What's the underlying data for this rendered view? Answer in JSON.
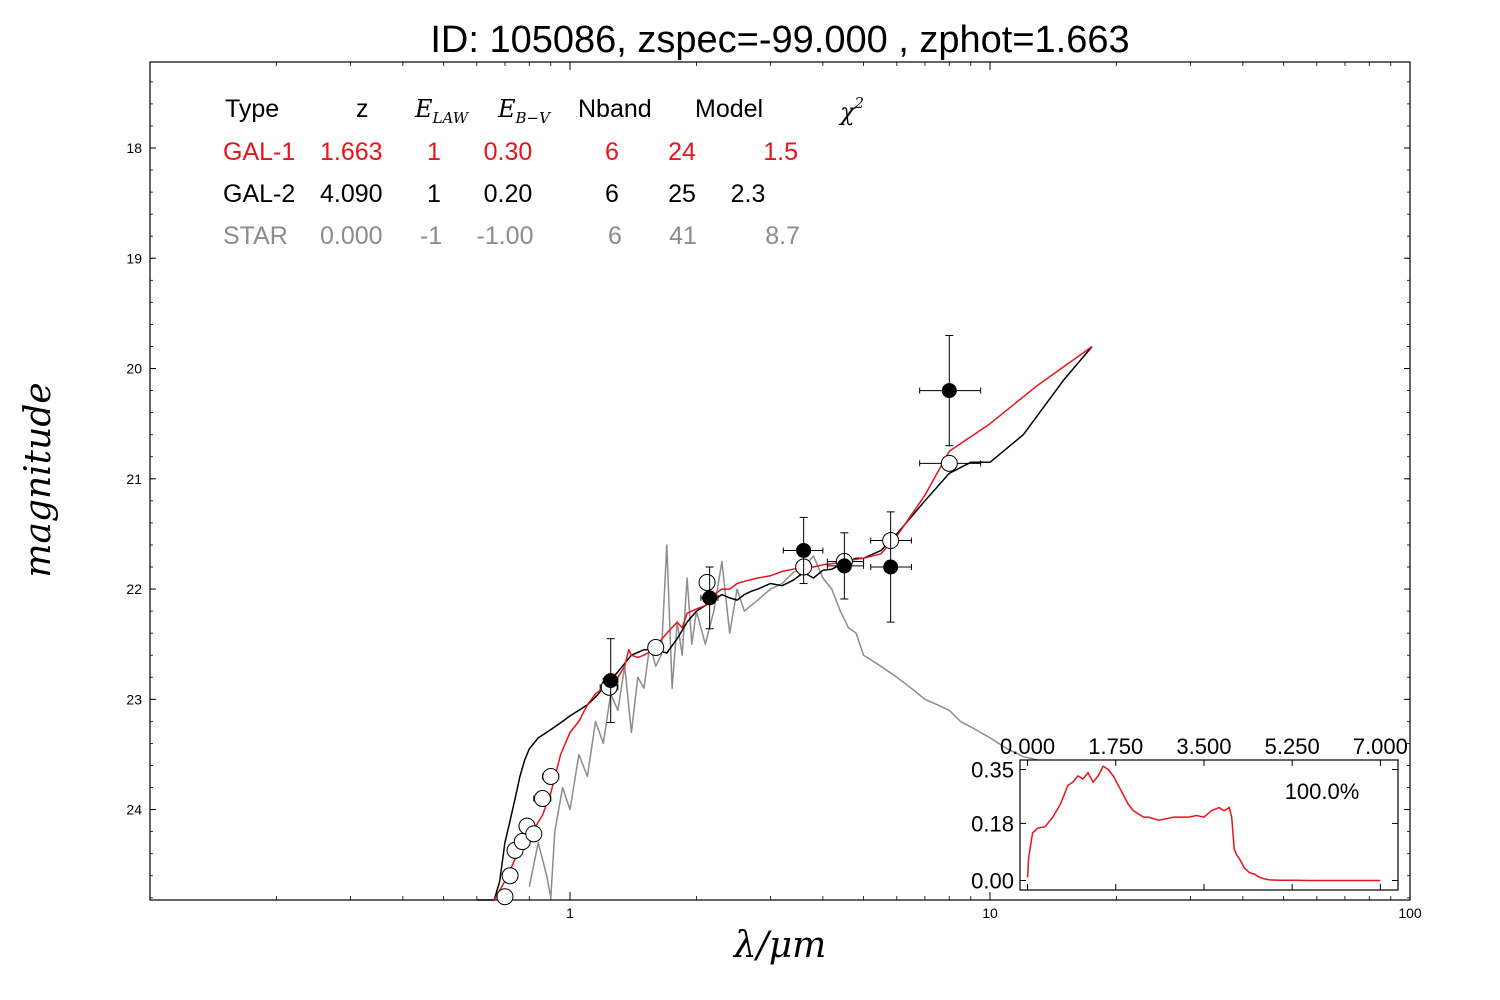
{
  "colors": {
    "gal1": "#e8141b",
    "gal2": "#000000",
    "star": "#8c8c8c"
  },
  "chart_data": {
    "type": "scatter",
    "title": "ID:  105086, zspec=-99.000 , zphot=1.663",
    "xlabel": "λ/μm",
    "ylabel": "magnitude",
    "xscale": "log",
    "xlim": [
      0.1,
      100
    ],
    "ylim": [
      24.82,
      17.22
    ],
    "x_tick_labels": [
      "1",
      "10",
      "100"
    ],
    "y_tick_labels": [
      "18",
      "19",
      "20",
      "21",
      "22",
      "23",
      "24"
    ],
    "grid": false,
    "table": {
      "headers": {
        "type": "Type",
        "z": "z",
        "elaw": "E",
        "elaw_sub": "LAW",
        "ebv": "E",
        "ebv_sub": "B−V",
        "nband": "Nband",
        "model": "Model",
        "chi2": "χ",
        "chi2_sup": "2"
      },
      "rows": [
        {
          "type": "GAL-1",
          "z": "1.663",
          "elaw": "1",
          "ebv": "0.30",
          "nband": "6",
          "model": "24",
          "chi2": "1.5"
        },
        {
          "type": "GAL-2",
          "z": "4.090",
          "elaw": "1",
          "ebv": "0.20",
          "nband": "6",
          "model": "25",
          "chi2": "2.3"
        },
        {
          "type": "STAR",
          "z": "0.000",
          "elaw": "-1",
          "ebv": "-1.00",
          "nband": "6",
          "model": "41",
          "chi2": "8.7"
        }
      ]
    },
    "observed_points": [
      {
        "x": 1.25,
        "y": 22.83,
        "xerr": [
          0.05,
          0.05
        ],
        "yerr": 0.38
      },
      {
        "x": 2.15,
        "y": 22.08,
        "xerr": [
          0.1,
          0.1
        ],
        "yerr": 0.28
      },
      {
        "x": 3.6,
        "y": 21.65,
        "xerr": [
          0.38,
          0.4
        ],
        "yerr": 0.3
      },
      {
        "x": 4.5,
        "y": 21.79,
        "xerr": [
          0.4,
          0.5
        ],
        "yerr": 0.3
      },
      {
        "x": 5.8,
        "y": 21.8,
        "xerr": [
          0.6,
          0.7
        ],
        "yerr": 0.5
      },
      {
        "x": 8.0,
        "y": 20.2,
        "xerr": [
          1.2,
          1.5
        ],
        "yerr": 0.5
      }
    ],
    "model_points": [
      {
        "x": 0.7,
        "y": 24.79,
        "xerr": [
          0,
          0
        ]
      },
      {
        "x": 0.72,
        "y": 24.6,
        "xerr": [
          0,
          0
        ]
      },
      {
        "x": 0.74,
        "y": 24.37,
        "xerr": [
          0,
          0
        ]
      },
      {
        "x": 0.77,
        "y": 24.29,
        "xerr": [
          0,
          0
        ]
      },
      {
        "x": 0.79,
        "y": 24.15,
        "xerr": [
          0,
          0
        ]
      },
      {
        "x": 0.82,
        "y": 24.22,
        "xerr": [
          0,
          0
        ]
      },
      {
        "x": 0.86,
        "y": 23.9,
        "xerr": [
          0.04,
          0.04
        ]
      },
      {
        "x": 0.9,
        "y": 23.7,
        "xerr": [
          0.04,
          0.04
        ]
      },
      {
        "x": 1.24,
        "y": 22.89,
        "xerr": [
          0.06,
          0.06
        ]
      },
      {
        "x": 1.6,
        "y": 22.53,
        "xerr": [
          0,
          0
        ]
      },
      {
        "x": 2.12,
        "y": 21.94,
        "xerr": [
          0,
          0
        ]
      },
      {
        "x": 3.6,
        "y": 21.8,
        "xerr": [
          0,
          0
        ]
      },
      {
        "x": 4.5,
        "y": 21.75,
        "xerr": [
          0.4,
          0.5
        ]
      },
      {
        "x": 5.8,
        "y": 21.56,
        "xerr": [
          0.6,
          0.7
        ]
      },
      {
        "x": 8.0,
        "y": 20.86,
        "xerr": [
          1.2,
          1.5
        ]
      }
    ],
    "series": [
      {
        "legend": "GAL-1",
        "color": "#e8141b",
        "x": [
          0.66,
          0.7,
          0.74,
          0.78,
          0.82,
          0.86,
          0.9,
          0.95,
          1.0,
          1.05,
          1.1,
          1.15,
          1.2,
          1.25,
          1.3,
          1.35,
          1.38,
          1.4,
          1.45,
          1.5,
          1.55,
          1.6,
          1.7,
          1.8,
          1.85,
          1.9,
          2.0,
          2.1,
          2.2,
          2.3,
          2.4,
          2.5,
          2.6,
          2.8,
          3.0,
          3.2,
          3.4,
          3.6,
          3.8,
          4.0,
          4.2,
          4.5,
          4.8,
          5.0,
          5.5,
          6.0,
          7.0,
          8.0,
          10.0,
          13.0,
          17.5
        ],
        "y": [
          24.85,
          24.65,
          24.45,
          24.3,
          24.18,
          24.05,
          23.85,
          23.5,
          23.3,
          23.2,
          23.05,
          22.95,
          22.9,
          22.85,
          22.8,
          22.7,
          22.55,
          22.6,
          22.62,
          22.6,
          22.57,
          22.52,
          22.4,
          22.3,
          22.35,
          22.22,
          22.18,
          22.15,
          22.05,
          22.0,
          22.0,
          21.95,
          21.93,
          21.9,
          21.88,
          21.84,
          21.82,
          21.8,
          21.8,
          21.78,
          21.77,
          21.75,
          21.73,
          21.72,
          21.68,
          21.52,
          21.15,
          20.75,
          20.5,
          20.15,
          19.8
        ]
      },
      {
        "legend": "GAL-2",
        "color": "#000000",
        "x": [
          0.6,
          0.66,
          0.68,
          0.7,
          0.72,
          0.74,
          0.76,
          0.78,
          0.8,
          0.84,
          0.88,
          0.92,
          0.96,
          1.0,
          1.05,
          1.1,
          1.15,
          1.2,
          1.3,
          1.4,
          1.5,
          1.6,
          1.7,
          1.8,
          1.9,
          2.0,
          2.1,
          2.2,
          2.3,
          2.4,
          2.5,
          2.6,
          2.7,
          2.8,
          3.0,
          3.2,
          3.4,
          3.6,
          3.8,
          4.0,
          4.2,
          4.4,
          4.6,
          4.8,
          5.0,
          5.5,
          6.0,
          7.0,
          8.0,
          9.0,
          10.0,
          12.0,
          15.0,
          17.5
        ],
        "y": [
          24.82,
          24.82,
          24.65,
          24.3,
          24.1,
          23.9,
          23.7,
          23.55,
          23.45,
          23.35,
          23.3,
          23.25,
          23.2,
          23.15,
          23.1,
          23.05,
          22.98,
          22.9,
          22.75,
          22.6,
          22.55,
          22.55,
          22.58,
          22.45,
          22.3,
          22.2,
          22.15,
          22.1,
          22.05,
          22.08,
          22.1,
          22.05,
          22.02,
          22.0,
          21.95,
          21.97,
          21.92,
          21.85,
          21.9,
          21.83,
          21.82,
          21.78,
          21.75,
          21.72,
          21.72,
          21.65,
          21.5,
          21.2,
          20.95,
          20.85,
          20.85,
          20.6,
          20.1,
          19.8
        ]
      },
      {
        "legend": "STAR",
        "color": "#8c8c8c",
        "x": [
          0.8,
          0.84,
          0.88,
          0.9,
          0.92,
          0.96,
          1.0,
          1.05,
          1.1,
          1.15,
          1.2,
          1.25,
          1.3,
          1.35,
          1.4,
          1.45,
          1.5,
          1.55,
          1.6,
          1.65,
          1.7,
          1.75,
          1.8,
          1.85,
          1.9,
          1.95,
          2.0,
          2.1,
          2.2,
          2.3,
          2.4,
          2.5,
          2.6,
          2.8,
          3.0,
          3.2,
          3.4,
          3.6,
          3.8,
          4.0,
          4.2,
          4.4,
          4.6,
          4.8,
          5.0,
          5.5,
          6.0,
          6.5,
          7.0,
          7.5,
          8.0,
          8.5,
          9.0,
          10.0,
          11.0,
          12.0,
          13.0
        ],
        "y": [
          24.7,
          24.3,
          24.6,
          24.8,
          24.2,
          23.8,
          24.0,
          23.5,
          23.7,
          23.2,
          23.4,
          22.95,
          23.1,
          22.7,
          23.3,
          22.8,
          22.9,
          22.5,
          22.7,
          22.6,
          21.6,
          22.9,
          22.3,
          22.6,
          21.9,
          22.5,
          22.2,
          22.5,
          22.2,
          21.75,
          22.4,
          22.0,
          22.2,
          22.1,
          22.0,
          21.95,
          21.85,
          21.8,
          21.7,
          21.9,
          22.0,
          22.2,
          22.35,
          22.4,
          22.6,
          22.7,
          22.8,
          22.9,
          23.0,
          23.05,
          23.1,
          23.2,
          23.25,
          23.35,
          23.45,
          23.52,
          23.55
        ]
      }
    ],
    "inset": {
      "type": "line",
      "x_tick_labels": [
        "0.000",
        "1.750",
        "3.500",
        "5.250",
        "7.000"
      ],
      "y_tick_labels": [
        "0.00",
        "0.18",
        "0.35"
      ],
      "xlim": [
        -0.15,
        7.35
      ],
      "ylim": [
        -0.03,
        0.38
      ],
      "annotation": "100.0%",
      "color": "#e8141b",
      "x": [
        0.0,
        0.02,
        0.1,
        0.2,
        0.35,
        0.5,
        0.65,
        0.8,
        0.9,
        1.0,
        1.1,
        1.2,
        1.3,
        1.4,
        1.5,
        1.6,
        1.7,
        1.8,
        1.9,
        2.0,
        2.1,
        2.2,
        2.3,
        2.4,
        2.5,
        2.6,
        2.75,
        2.9,
        3.05,
        3.2,
        3.35,
        3.5,
        3.65,
        3.8,
        3.9,
        4.0,
        4.05,
        4.1,
        4.15,
        4.2,
        4.25,
        4.3,
        4.4,
        4.5,
        4.6,
        4.7,
        4.8,
        5.0,
        5.3,
        5.6,
        6.0,
        6.5,
        7.0
      ],
      "y": [
        0.01,
        0.07,
        0.15,
        0.165,
        0.17,
        0.2,
        0.24,
        0.3,
        0.31,
        0.33,
        0.32,
        0.34,
        0.31,
        0.33,
        0.36,
        0.35,
        0.33,
        0.3,
        0.27,
        0.24,
        0.22,
        0.21,
        0.2,
        0.2,
        0.195,
        0.19,
        0.195,
        0.2,
        0.2,
        0.2,
        0.205,
        0.2,
        0.22,
        0.23,
        0.22,
        0.23,
        0.2,
        0.1,
        0.08,
        0.07,
        0.055,
        0.04,
        0.025,
        0.02,
        0.01,
        0.005,
        0.002,
        0.001,
        0.001,
        0.0,
        0.0,
        0.0,
        0.0
      ]
    }
  }
}
